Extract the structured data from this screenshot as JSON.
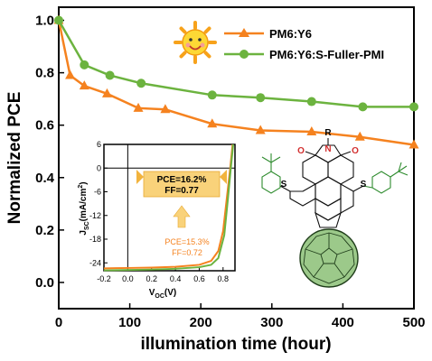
{
  "chart_data": [
    {
      "type": "line",
      "xlabel": "illumination time (hour)",
      "ylabel": "Normalized PCE",
      "xlim": [
        0,
        500
      ],
      "ylim": [
        -0.1,
        1.05
      ],
      "x_ticks": [
        "0",
        "100",
        "200",
        "300",
        "400",
        "500"
      ],
      "y_ticks": [
        "0.0",
        "0.2",
        "0.4",
        "0.6",
        "0.8",
        "1.0"
      ],
      "grid": false,
      "legend_placement": "top-right",
      "series": [
        {
          "name": "PM6:Y6",
          "color": "#f5821f",
          "marker": "triangle",
          "x": [
            0,
            16,
            36,
            68,
            112,
            150,
            216,
            284,
            356,
            424,
            500
          ],
          "y": [
            1.0,
            0.79,
            0.75,
            0.72,
            0.665,
            0.66,
            0.605,
            0.58,
            0.575,
            0.555,
            0.525
          ]
        },
        {
          "name": "PM6:Y6:S-Fuller-PMI",
          "color": "#6cb33f",
          "marker": "circle",
          "x": [
            0,
            36,
            72,
            116,
            216,
            284,
            356,
            428,
            500
          ],
          "y": [
            1.0,
            0.83,
            0.79,
            0.76,
            0.715,
            0.705,
            0.69,
            0.67,
            0.67
          ]
        }
      ]
    },
    {
      "type": "line",
      "xlabel_main": "V",
      "xlabel_sub": "OC",
      "xlabel_unit": "(V)",
      "ylabel_main": "J",
      "ylabel_sub": "SC",
      "ylabel_unit": "(mA/cm",
      "ylabel_sup": "2",
      "ylabel_close": ")",
      "xlim": [
        -0.2,
        0.9
      ],
      "ylim": [
        -26,
        6
      ],
      "x_ticks": [
        "-0.2",
        "0.0",
        "0.2",
        "0.4",
        "0.6",
        "0.8"
      ],
      "y_ticks": [
        "6",
        "0",
        "-6",
        "-12",
        "-18",
        "-24"
      ],
      "series": [
        {
          "color": "#f5821f",
          "x": [
            -0.2,
            0.0,
            0.2,
            0.4,
            0.6,
            0.7,
            0.76,
            0.8,
            0.83,
            0.86,
            0.88
          ],
          "y": [
            -25.4,
            -25.3,
            -25.2,
            -25.0,
            -24.5,
            -23.5,
            -21.0,
            -16.0,
            -8.0,
            0.0,
            6.0
          ]
        },
        {
          "color": "#6cb33f",
          "x": [
            -0.2,
            0.0,
            0.2,
            0.4,
            0.6,
            0.7,
            0.76,
            0.81,
            0.84,
            0.865,
            0.885
          ],
          "y": [
            -25.9,
            -25.8,
            -25.7,
            -25.5,
            -25.1,
            -24.5,
            -22.8,
            -17.0,
            -8.0,
            0.0,
            6.0
          ]
        }
      ],
      "annotations": {
        "green": [
          "PCE=16.2%",
          "FF=0.77"
        ],
        "orange": [
          "PCE=15.3%",
          "FF=0.72"
        ]
      }
    }
  ],
  "molecule": {
    "atom_n": "N",
    "atom_r": "R",
    "atom_o1": "O",
    "atom_o2": "O",
    "atom_s1": "S",
    "atom_s2": "S"
  },
  "colors": {
    "orange": "#f5821f",
    "green": "#6cb33f",
    "banner": "#f9d27a",
    "fullerene": "#9cc98a"
  },
  "icons": [
    "sun-icon",
    "arrow-up-icon"
  ]
}
